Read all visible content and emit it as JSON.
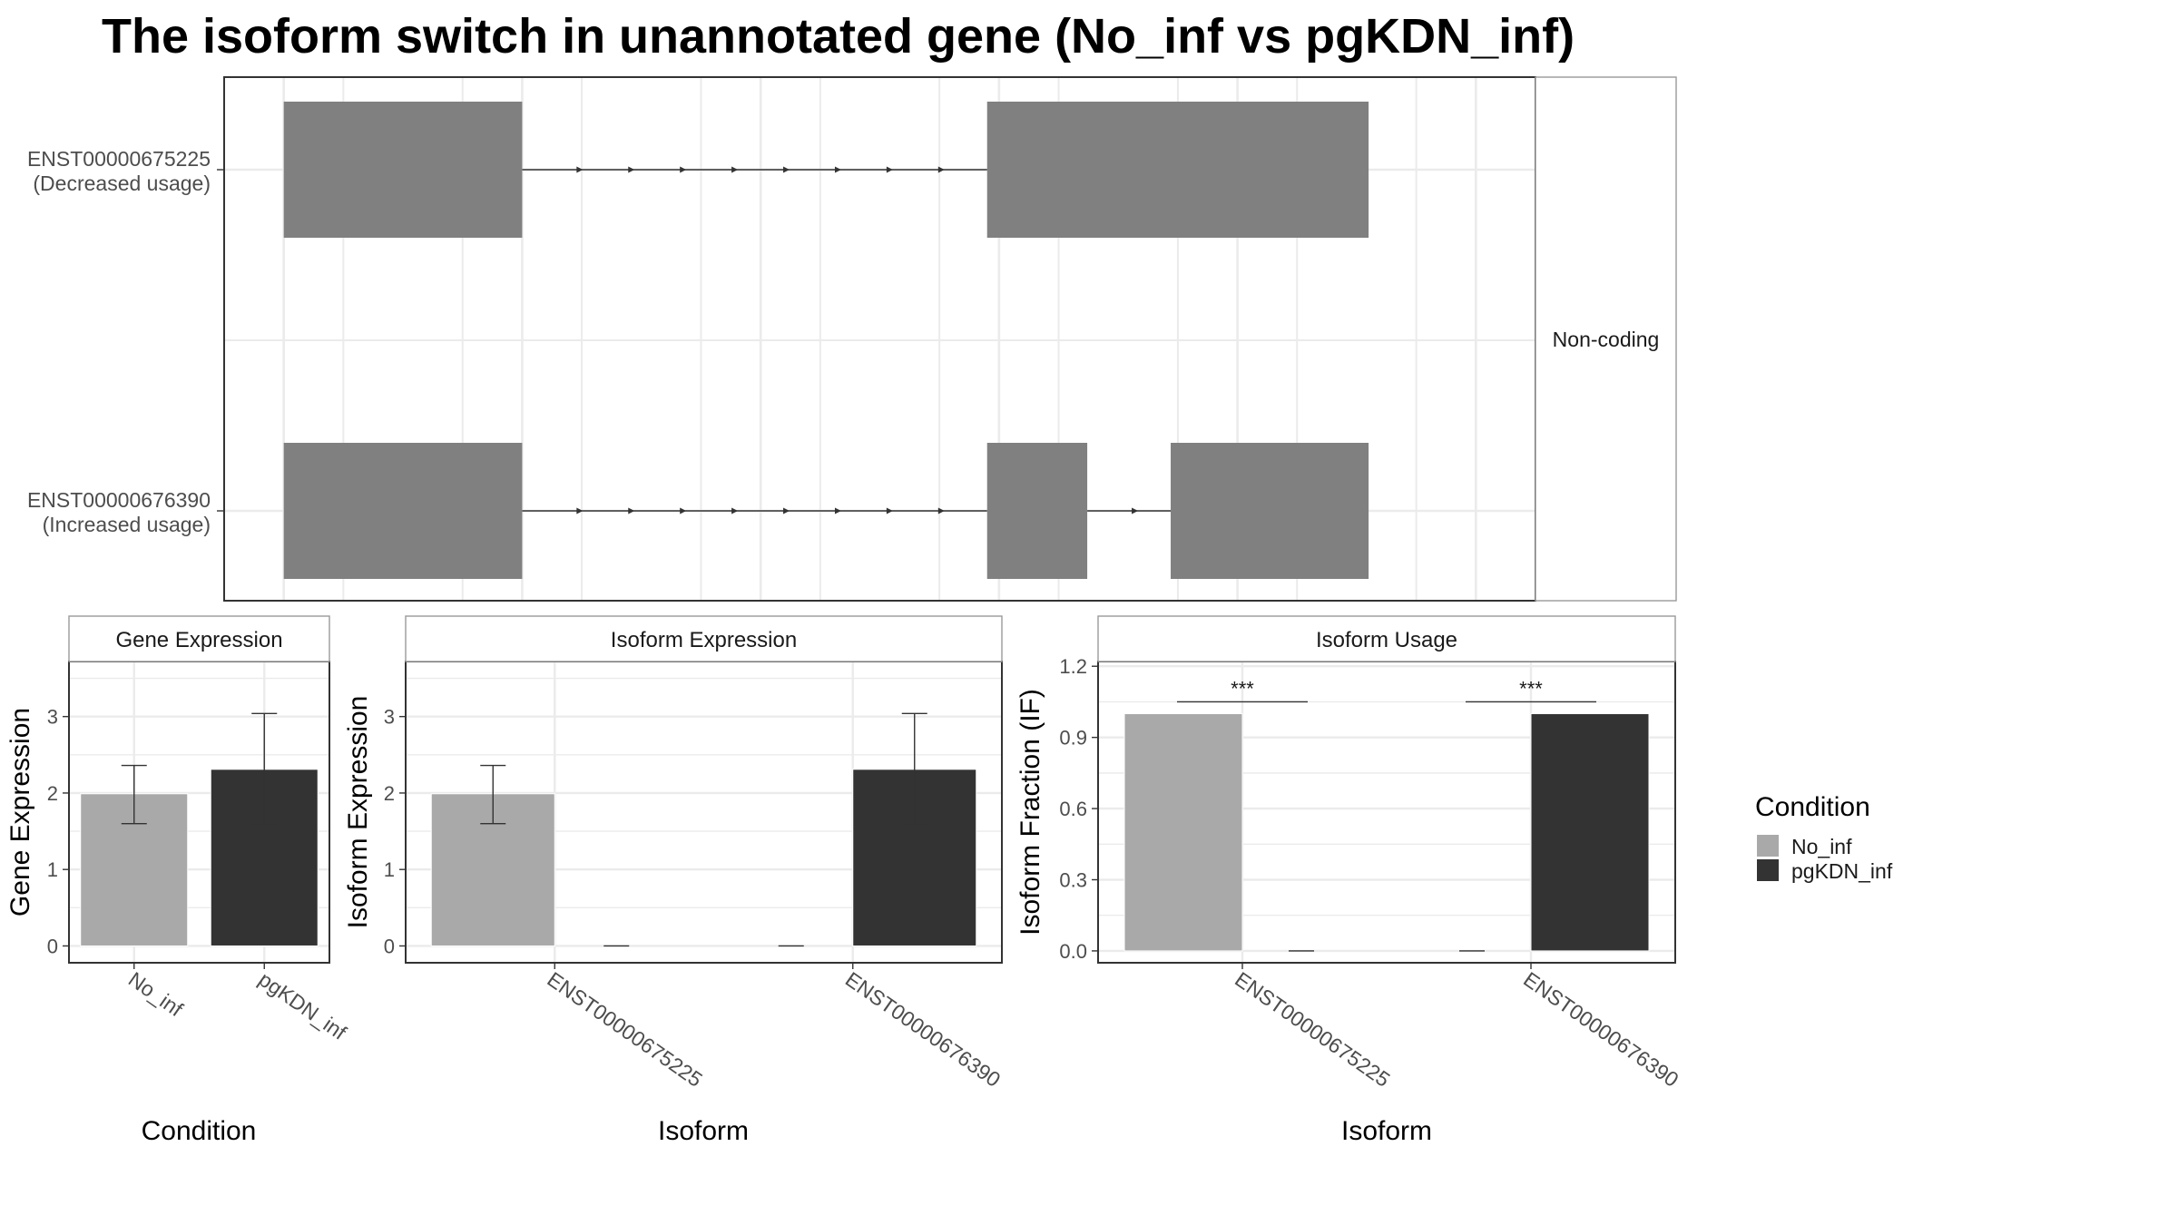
{
  "title": "The isoform switch in unannotated gene (No_inf vs pgKDN_inf)",
  "colors": {
    "No_inf": "#a9a9a9",
    "pgKDN_inf": "#333333",
    "exon": "#808080",
    "intron": "#333333",
    "grid": "#ebebeb",
    "panel_border": "#333333",
    "strip_border": "#999999",
    "axis_text": "#4d4d4d",
    "text": "#1a1a1a"
  },
  "chart_data": [
    {
      "type": "transcript_structure",
      "panel": "structure",
      "facet_label": "Non-coding",
      "arrow_direction": "right",
      "transcripts": [
        {
          "id": "ENST00000675225",
          "usage": "(Decreased usage)",
          "exons": [
            [
              0.0,
              0.2
            ],
            [
              0.59,
              0.91
            ]
          ]
        },
        {
          "id": "ENST00000676390",
          "usage": "(Increased usage)",
          "exons": [
            [
              0.0,
              0.2
            ],
            [
              0.59,
              0.674
            ],
            [
              0.744,
              0.91
            ]
          ]
        }
      ]
    },
    {
      "type": "bar",
      "panel": "gene_expression",
      "strip_label": "Gene Expression",
      "xlabel": "Condition",
      "ylabel": "Gene Expression",
      "ylim": [
        -0.22,
        3.72
      ],
      "yticks": [
        0,
        1,
        2,
        3
      ],
      "categories": [
        "No_inf",
        "pgKDN_inf"
      ],
      "bars": [
        {
          "category": "No_inf",
          "condition": "No_inf",
          "value": 1.99,
          "err_low": 1.6,
          "err_high": 2.36
        },
        {
          "category": "pgKDN_inf",
          "condition": "pgKDN_inf",
          "value": 2.31,
          "err_low": 1.6,
          "err_high": 3.04
        }
      ]
    },
    {
      "type": "bar",
      "panel": "isoform_expression",
      "strip_label": "Isoform Expression",
      "xlabel": "Isoform",
      "ylabel": "Isoform Expression",
      "ylim": [
        -0.22,
        3.72
      ],
      "yticks": [
        0,
        1,
        2,
        3
      ],
      "categories": [
        "ENST00000675225",
        "ENST00000676390"
      ],
      "bars": [
        {
          "category": "ENST00000675225",
          "condition": "No_inf",
          "value": 1.99,
          "err_low": 1.6,
          "err_high": 2.36
        },
        {
          "category": "ENST00000675225",
          "condition": "pgKDN_inf",
          "value": 0.0,
          "err_low": 0.0,
          "err_high": 0.0
        },
        {
          "category": "ENST00000676390",
          "condition": "No_inf",
          "value": 0.0,
          "err_low": 0.0,
          "err_high": 0.0
        },
        {
          "category": "ENST00000676390",
          "condition": "pgKDN_inf",
          "value": 2.31,
          "err_low": 1.6,
          "err_high": 3.04
        }
      ]
    },
    {
      "type": "bar",
      "panel": "isoform_usage",
      "strip_label": "Isoform Usage",
      "xlabel": "Isoform",
      "ylabel": "Isoform Fraction (IF)",
      "ylim": [
        -0.05,
        1.22
      ],
      "yticks": [
        0.0,
        0.3,
        0.6,
        0.9,
        1.2
      ],
      "ytick_labels": [
        "0.0",
        "0.3",
        "0.6",
        "0.9",
        "1.2"
      ],
      "categories": [
        "ENST00000675225",
        "ENST00000676390"
      ],
      "bars": [
        {
          "category": "ENST00000675225",
          "condition": "No_inf",
          "value": 1.0
        },
        {
          "category": "ENST00000675225",
          "condition": "pgKDN_inf",
          "value": 0.0
        },
        {
          "category": "ENST00000676390",
          "condition": "No_inf",
          "value": 0.0
        },
        {
          "category": "ENST00000676390",
          "condition": "pgKDN_inf",
          "value": 1.0
        }
      ],
      "significance": [
        {
          "category": "ENST00000675225",
          "label": "***",
          "y": 1.05
        },
        {
          "category": "ENST00000676390",
          "label": "***",
          "y": 1.05
        }
      ]
    }
  ],
  "legend": {
    "title": "Condition",
    "placement": "right",
    "items": [
      "No_inf",
      "pgKDN_inf"
    ]
  }
}
